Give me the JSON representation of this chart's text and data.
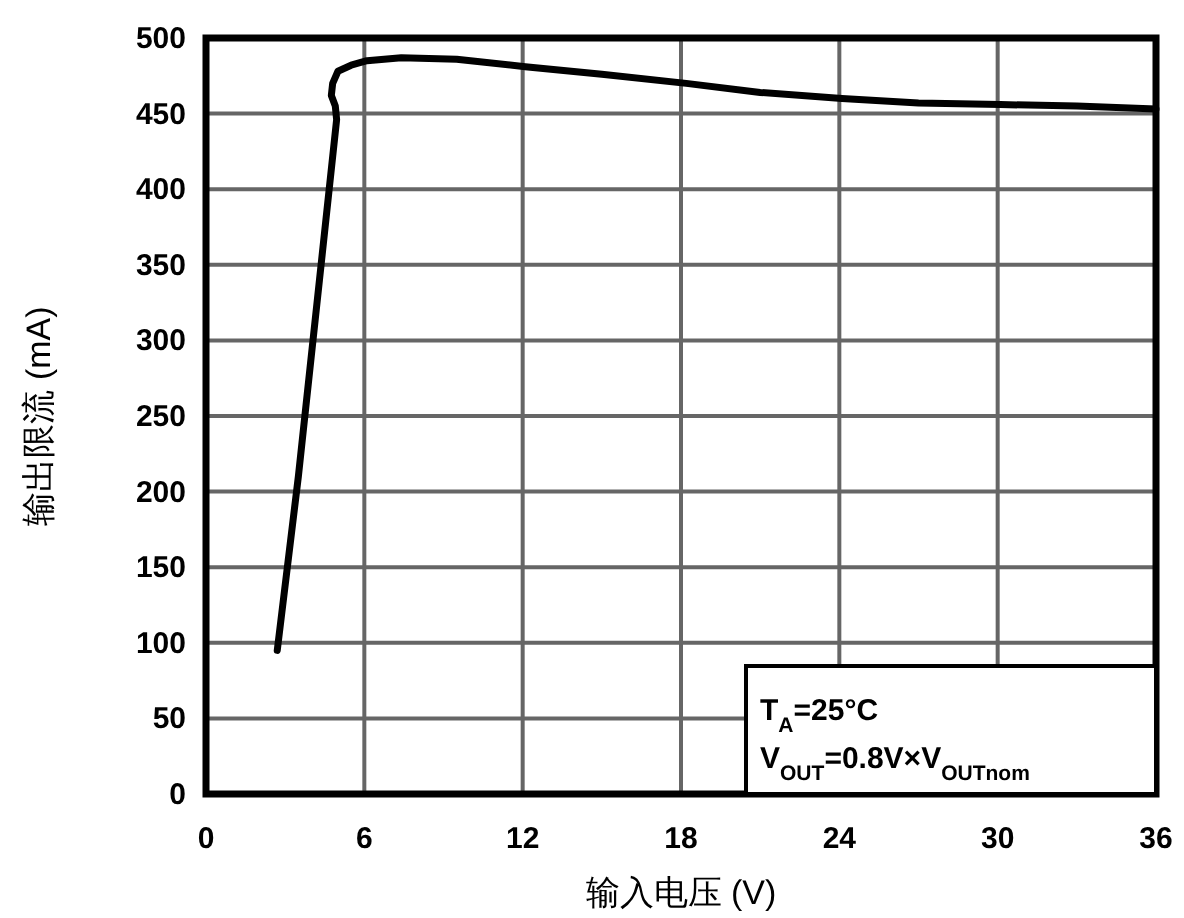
{
  "chart_data": {
    "type": "line",
    "xlabel": "输入电压 (V)",
    "ylabel": "输出限流 (mA)",
    "xlim": [
      0,
      36
    ],
    "ylim": [
      0,
      500
    ],
    "xticks": [
      0,
      6,
      12,
      18,
      24,
      30,
      36
    ],
    "yticks": [
      0,
      50,
      100,
      150,
      200,
      250,
      300,
      350,
      400,
      450,
      500
    ],
    "grid": true,
    "marker": "none",
    "line_style": "solid",
    "series": [
      {
        "color": "#000000",
        "x": [
          2.7,
          3.5,
          4.3,
          4.95,
          4.9,
          4.75,
          4.8,
          5.0,
          5.5,
          6.1,
          7.4,
          9.5,
          12.1,
          15,
          18.2,
          21,
          24.1,
          27,
          30.1,
          33,
          36
        ],
        "values": [
          95,
          210,
          340,
          446,
          455,
          462,
          470,
          478,
          482,
          485,
          487,
          486,
          481,
          476,
          470,
          464,
          460,
          457,
          456,
          455,
          453
        ]
      }
    ],
    "annotations": [
      "T$_{A}$=25°C",
      "V$_{OUT}$=0.8V×V$_{OUTnom}$"
    ]
  }
}
